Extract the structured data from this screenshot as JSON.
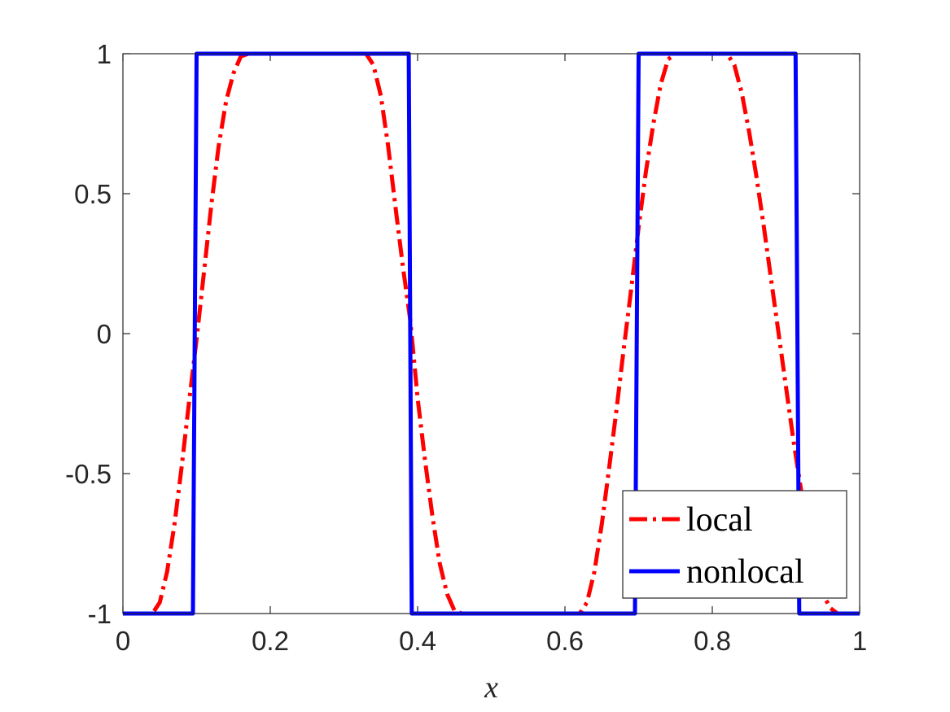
{
  "chart_data": {
    "type": "line",
    "title": "",
    "xlabel": "x",
    "ylabel": "",
    "xlim": [
      0,
      1
    ],
    "ylim": [
      -1,
      1
    ],
    "xticks": [
      "0",
      "0.2",
      "0.4",
      "0.6",
      "0.8",
      "1"
    ],
    "yticks": [
      "-1",
      "-0.5",
      "0",
      "0.5",
      "1"
    ],
    "grid": false,
    "legend_position": "bottom-right",
    "series": [
      {
        "name": "local",
        "color": "#ff0000",
        "style": "dash-dot",
        "points": [
          [
            0,
            -1
          ],
          [
            0.04,
            -1
          ],
          [
            0.05,
            -0.96
          ],
          [
            0.06,
            -0.85
          ],
          [
            0.07,
            -0.68
          ],
          [
            0.08,
            -0.47
          ],
          [
            0.09,
            -0.24
          ],
          [
            0.1,
            -0.02
          ],
          [
            0.11,
            0.22
          ],
          [
            0.12,
            0.46
          ],
          [
            0.13,
            0.67
          ],
          [
            0.14,
            0.83
          ],
          [
            0.15,
            0.93
          ],
          [
            0.16,
            0.99
          ],
          [
            0.17,
            1
          ],
          [
            0.33,
            1
          ],
          [
            0.34,
            0.96
          ],
          [
            0.35,
            0.85
          ],
          [
            0.36,
            0.67
          ],
          [
            0.37,
            0.45
          ],
          [
            0.38,
            0.24
          ],
          [
            0.39,
            0.05
          ],
          [
            0.4,
            -0.23
          ],
          [
            0.41,
            -0.45
          ],
          [
            0.42,
            -0.65
          ],
          [
            0.43,
            -0.82
          ],
          [
            0.44,
            -0.93
          ],
          [
            0.45,
            -0.99
          ],
          [
            0.46,
            -1
          ],
          [
            0.62,
            -1
          ],
          [
            0.63,
            -0.96
          ],
          [
            0.64,
            -0.85
          ],
          [
            0.65,
            -0.68
          ],
          [
            0.66,
            -0.48
          ],
          [
            0.67,
            -0.27
          ],
          [
            0.68,
            -0.05
          ],
          [
            0.69,
            0.16
          ],
          [
            0.7,
            0.38
          ],
          [
            0.71,
            0.58
          ],
          [
            0.72,
            0.75
          ],
          [
            0.73,
            0.89
          ],
          [
            0.74,
            0.98
          ],
          [
            0.75,
            1
          ],
          [
            0.82,
            1
          ],
          [
            0.83,
            0.96
          ],
          [
            0.84,
            0.86
          ],
          [
            0.85,
            0.72
          ],
          [
            0.86,
            0.56
          ],
          [
            0.87,
            0.38
          ],
          [
            0.88,
            0.19
          ],
          [
            0.89,
            0
          ],
          [
            0.9,
            -0.19
          ],
          [
            0.91,
            -0.38
          ],
          [
            0.92,
            -0.55
          ],
          [
            0.93,
            -0.71
          ],
          [
            0.94,
            -0.84
          ],
          [
            0.95,
            -0.93
          ],
          [
            0.96,
            -0.98
          ],
          [
            0.97,
            -1
          ],
          [
            1,
            -1
          ]
        ]
      },
      {
        "name": "nonlocal",
        "color": "#0000ff",
        "style": "solid",
        "points": [
          [
            0,
            -1
          ],
          [
            0.095,
            -1
          ],
          [
            0.1,
            1
          ],
          [
            0.388,
            1
          ],
          [
            0.392,
            -1
          ],
          [
            0.695,
            -1
          ],
          [
            0.7,
            1
          ],
          [
            0.913,
            1
          ],
          [
            0.918,
            -1
          ],
          [
            1,
            -1
          ]
        ]
      }
    ]
  }
}
